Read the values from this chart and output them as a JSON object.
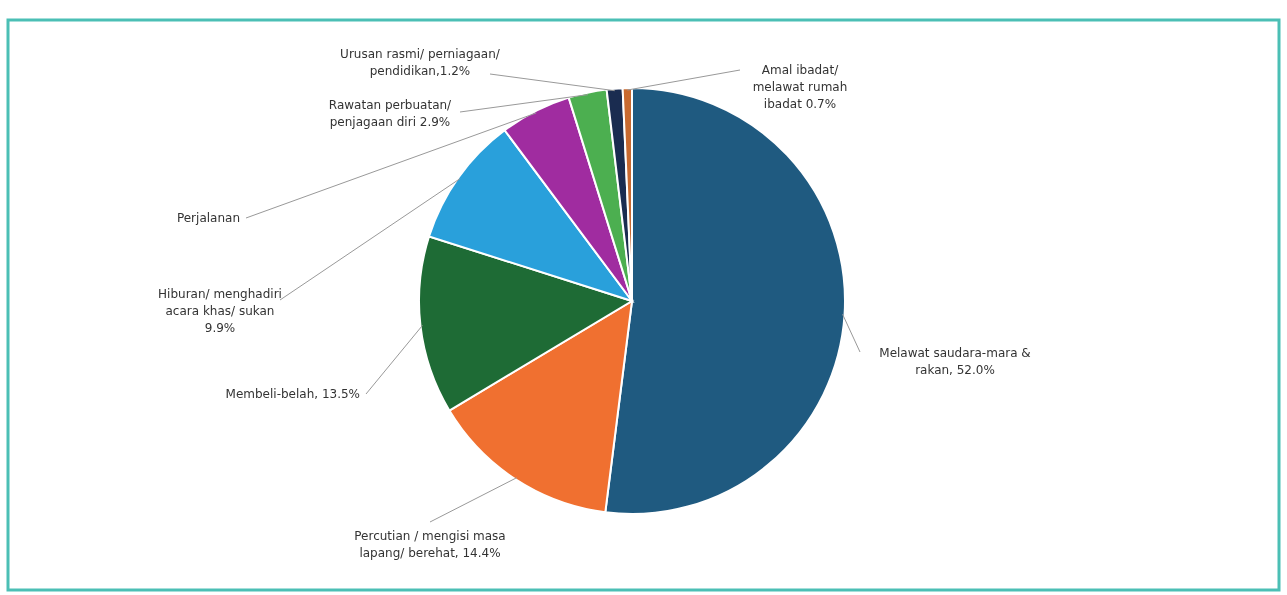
{
  "chart_data": {
    "type": "pie",
    "categories": [
      "Melawat saudara-mara & rakan, 52.0%",
      "Percutian / mengisi masa lapang/ berehat, 14.4%",
      "Membeli-belah, 13.5%",
      "Hiburan/ menghadiri acara khas/ sukan 9.9%",
      "Perjalanan",
      "Rawatan perbuatan/ penjagaan diri 2.9%",
      "Urusan rasmi/ perniagaan/ pendidikan,1.2%",
      "Amal ibadat/ melawat rumah ibadat 0.7%"
    ],
    "values": [
      52.0,
      14.4,
      13.5,
      9.9,
      5.4,
      2.9,
      1.2,
      0.7
    ],
    "colors": [
      "#1f5a80",
      "#f07030",
      "#1e6b35",
      "#29a0db",
      "#a02ca0",
      "#4caf50",
      "#1a2c50",
      "#c86a30"
    ]
  }
}
